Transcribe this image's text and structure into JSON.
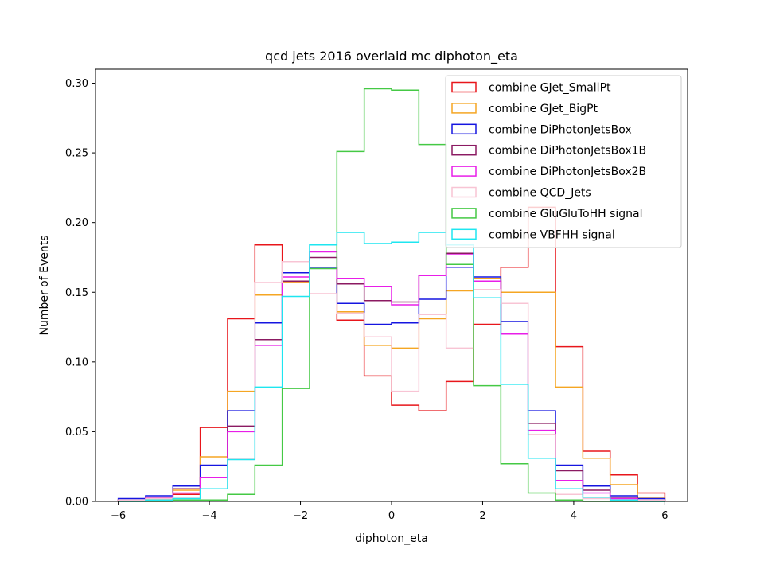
{
  "chart_data": {
    "type": "histogram",
    "title": "qcd jets 2016 overlaid mc diphoton_eta",
    "xlabel": "diphoton_eta",
    "ylabel": "Number of Events",
    "xlim": [
      -6.5,
      6.5
    ],
    "ylim": [
      0,
      0.31
    ],
    "xticks": [
      -6,
      -4,
      -2,
      0,
      2,
      4,
      6
    ],
    "xtick_labels": [
      "−6",
      "−4",
      "−2",
      "0",
      "2",
      "4",
      "6"
    ],
    "yticks": [
      0.0,
      0.05,
      0.1,
      0.15,
      0.2,
      0.25,
      0.3
    ],
    "ytick_labels": [
      "0.00",
      "0.05",
      "0.10",
      "0.15",
      "0.20",
      "0.25",
      "0.30"
    ],
    "bin_edges": [
      -6.0,
      -5.4,
      -4.8,
      -4.2,
      -3.6,
      -3.0,
      -2.4,
      -1.8,
      -1.2,
      -0.6,
      0.0,
      0.6,
      1.2,
      1.8,
      2.4,
      3.0,
      3.6,
      4.2,
      4.8,
      5.4,
      6.0
    ],
    "legend_position": "upper right",
    "grid": false,
    "series": [
      {
        "name": "combine GJet_SmallPt",
        "color": "#e8161b",
        "values": [
          0.001,
          0.003,
          0.005,
          0.053,
          0.131,
          0.184,
          0.157,
          0.168,
          0.13,
          0.09,
          0.069,
          0.065,
          0.086,
          0.127,
          0.168,
          0.211,
          0.111,
          0.036,
          0.019,
          0.006
        ]
      },
      {
        "name": "combine GJet_BigPt",
        "color": "#f5a623",
        "values": [
          0.001,
          0.002,
          0.008,
          0.032,
          0.079,
          0.148,
          0.157,
          0.168,
          0.136,
          0.112,
          0.11,
          0.131,
          0.151,
          0.16,
          0.15,
          0.15,
          0.082,
          0.031,
          0.012,
          0.003
        ]
      },
      {
        "name": "combine DiPhotonJetsBox",
        "color": "#1515e0",
        "values": [
          0.002,
          0.004,
          0.011,
          0.026,
          0.065,
          0.128,
          0.164,
          0.168,
          0.142,
          0.127,
          0.128,
          0.145,
          0.168,
          0.161,
          0.129,
          0.065,
          0.026,
          0.011,
          0.004,
          0.002
        ]
      },
      {
        "name": "combine DiPhotonJetsBox1B",
        "color": "#8b1a62",
        "values": [
          0.001,
          0.003,
          0.009,
          0.017,
          0.054,
          0.116,
          0.158,
          0.175,
          0.156,
          0.144,
          0.143,
          0.162,
          0.178,
          0.158,
          0.12,
          0.056,
          0.022,
          0.008,
          0.003,
          0.001
        ]
      },
      {
        "name": "combine DiPhotonJetsBox2B",
        "color": "#e81ee8",
        "values": [
          0.001,
          0.003,
          0.006,
          0.017,
          0.05,
          0.112,
          0.161,
          0.179,
          0.16,
          0.154,
          0.141,
          0.162,
          0.177,
          0.158,
          0.12,
          0.051,
          0.015,
          0.006,
          0.002,
          0.001
        ]
      },
      {
        "name": "combine QCD_Jets",
        "color": "#f8c4d4",
        "values": [
          0.001,
          0.002,
          0.003,
          0.009,
          0.031,
          0.157,
          0.172,
          0.149,
          0.135,
          0.118,
          0.079,
          0.134,
          0.11,
          0.152,
          0.142,
          0.048,
          0.005,
          0.002,
          0.001,
          0.001
        ]
      },
      {
        "name": "combine GluGluToHH signal",
        "color": "#45c945",
        "values": [
          0.0,
          0.0,
          0.001,
          0.001,
          0.005,
          0.026,
          0.081,
          0.167,
          0.251,
          0.296,
          0.295,
          0.256,
          0.17,
          0.083,
          0.027,
          0.006,
          0.001,
          0.0,
          0.0,
          0.0
        ]
      },
      {
        "name": "combine VBFHH signal",
        "color": "#1ee6f0",
        "values": [
          0.0,
          0.001,
          0.002,
          0.009,
          0.03,
          0.082,
          0.147,
          0.184,
          0.193,
          0.185,
          0.186,
          0.193,
          0.184,
          0.146,
          0.084,
          0.031,
          0.009,
          0.003,
          0.001,
          0.0
        ]
      }
    ]
  }
}
